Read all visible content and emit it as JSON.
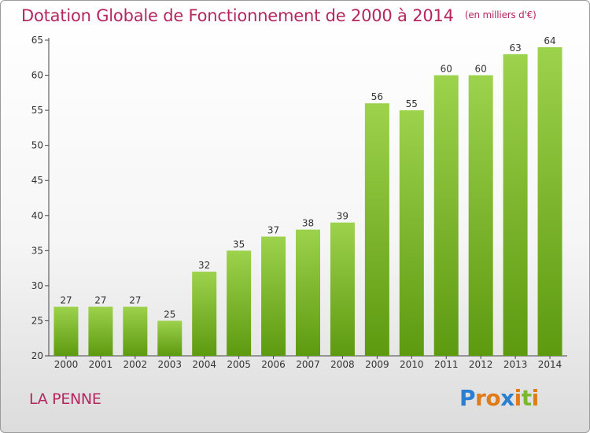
{
  "title": "Dotation Globale de Fonctionnement de 2000 à 2014",
  "subtitle": "(en milliers d'€)",
  "commune": "LA PENNE",
  "logo": {
    "letters": [
      "P",
      "r",
      "o",
      "x",
      "i",
      "t",
      "i"
    ],
    "colors": [
      "#2a7fd0",
      "#e07b1a",
      "#e07b1a",
      "#2a7fd0",
      "#e07b1a",
      "#7cb82f",
      "#e07b1a"
    ]
  },
  "colors": {
    "bar_light": "#9dd24c",
    "bar_dark": "#5d9a10",
    "title": "#b5265e"
  },
  "chart_data": {
    "type": "bar",
    "categories": [
      "2000",
      "2001",
      "2002",
      "2003",
      "2004",
      "2005",
      "2006",
      "2007",
      "2008",
      "2009",
      "2010",
      "2011",
      "2012",
      "2013",
      "2014"
    ],
    "values": [
      27,
      27,
      27,
      25,
      32,
      35,
      37,
      38,
      39,
      56,
      55,
      60,
      60,
      63,
      64
    ],
    "ylim": [
      20,
      65
    ],
    "yticks": [
      20,
      25,
      30,
      35,
      40,
      45,
      50,
      55,
      60,
      65
    ],
    "grid": false
  }
}
